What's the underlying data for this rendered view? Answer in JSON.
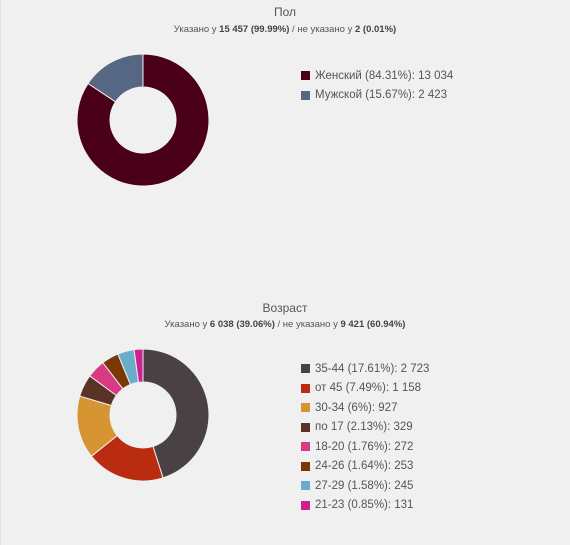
{
  "gender": {
    "title": "Пол",
    "subtitle": {
      "prefix": "Указано у",
      "specified": "15 457 (99.99%)",
      "middle": "/ не указано у",
      "unspecified": "2 (0.01%)"
    }
  },
  "age": {
    "title": "Возраст",
    "subtitle": {
      "prefix": "Указано у",
      "specified": "6 038 (39.06%)",
      "middle": "/ не указано у",
      "unspecified": "9 421 (60.94%)"
    }
  },
  "chart_data": [
    {
      "type": "pie",
      "style": "donut",
      "title": "Пол",
      "legend_position": "right",
      "slices": [
        {
          "label": "Женский (84.31%): 13 034",
          "name": "Женский",
          "percent": 84.31,
          "value": 13034,
          "color": "#4a0019"
        },
        {
          "label": "Мужской (15.67%): 2 423",
          "name": "Мужской",
          "percent": 15.67,
          "value": 2423,
          "color": "#566783"
        }
      ]
    },
    {
      "type": "pie",
      "style": "donut",
      "title": "Возраст",
      "legend_position": "right",
      "slices": [
        {
          "label": "35-44 (17.61%): 2 723",
          "name": "35-44",
          "percent": 17.61,
          "value": 2723,
          "color": "#4a4144"
        },
        {
          "label": "от 45 (7.49%): 1 158",
          "name": "от 45",
          "percent": 7.49,
          "value": 1158,
          "color": "#b92c0f"
        },
        {
          "label": "30-34 (6%): 927",
          "name": "30-34",
          "percent": 6,
          "value": 927,
          "color": "#d69532"
        },
        {
          "label": "по 17 (2.13%): 329",
          "name": "по 17",
          "percent": 2.13,
          "value": 329,
          "color": "#5a3327"
        },
        {
          "label": "18-20 (1.76%): 272",
          "name": "18-20",
          "percent": 1.76,
          "value": 272,
          "color": "#d83a84"
        },
        {
          "label": "24-26 (1.64%): 253",
          "name": "24-26",
          "percent": 1.64,
          "value": 253,
          "color": "#7a3806"
        },
        {
          "label": "27-29 (1.58%): 245",
          "name": "27-29",
          "percent": 1.58,
          "value": 245,
          "color": "#6caccb"
        },
        {
          "label": "21-23 (0.85%): 131",
          "name": "21-23",
          "percent": 0.85,
          "value": 131,
          "color": "#cc2093"
        }
      ]
    }
  ]
}
